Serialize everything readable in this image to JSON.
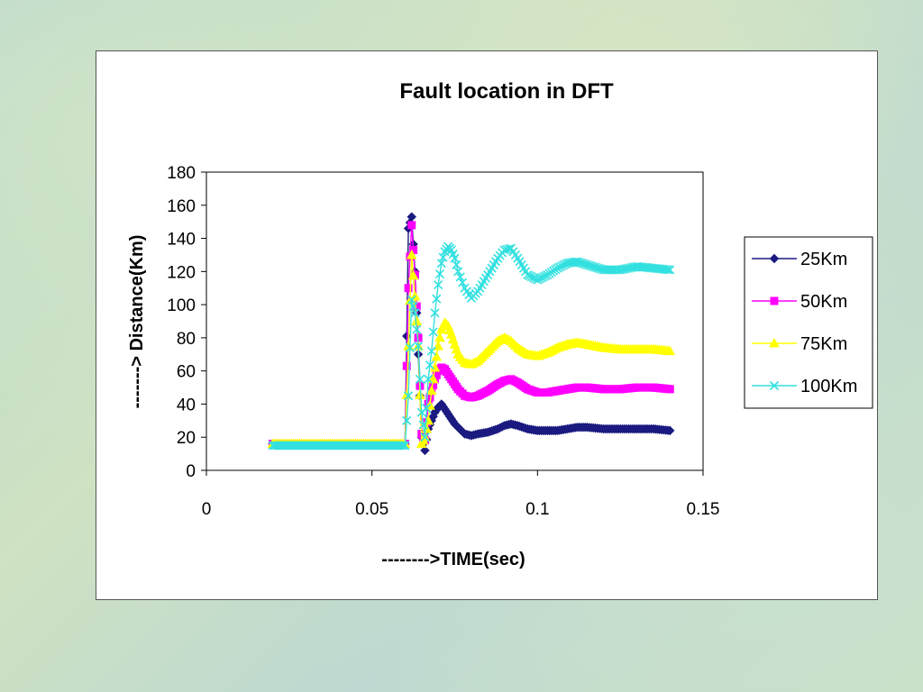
{
  "chart_data": {
    "type": "line",
    "title": "Fault location in DFT",
    "xlabel": "-------->TIME(sec)",
    "ylabel": "-------> Distance(Km)",
    "xlim": [
      0,
      0.15
    ],
    "ylim": [
      0,
      180
    ],
    "xticks": [
      "0",
      "0.05",
      "0.1",
      "0.15"
    ],
    "yticks": [
      "0",
      "20",
      "40",
      "60",
      "80",
      "100",
      "120",
      "140",
      "160",
      "180"
    ],
    "grid": false,
    "legend_position": "right",
    "series": [
      {
        "name": "25Km",
        "color": "#1a1a80",
        "marker": "diamond",
        "x": [
          0.02,
          0.025,
          0.03,
          0.035,
          0.04,
          0.045,
          0.05,
          0.055,
          0.06,
          0.061,
          0.062,
          0.063,
          0.064,
          0.065,
          0.066,
          0.067,
          0.068,
          0.069,
          0.07,
          0.071,
          0.072,
          0.073,
          0.074,
          0.075,
          0.076,
          0.078,
          0.08,
          0.082,
          0.085,
          0.088,
          0.09,
          0.092,
          0.094,
          0.097,
          0.1,
          0.103,
          0.106,
          0.109,
          0.112,
          0.115,
          0.12,
          0.125,
          0.13,
          0.135,
          0.14
        ],
        "y": [
          16,
          16,
          16,
          16,
          16,
          16,
          16,
          16,
          16,
          146,
          153,
          120,
          70,
          20,
          12,
          25,
          30,
          35,
          38,
          40,
          37,
          34,
          31,
          28,
          26,
          22,
          21,
          22,
          23,
          25,
          27,
          28,
          27,
          25,
          24,
          24,
          24,
          25,
          26,
          26,
          25,
          25,
          25,
          25,
          24
        ]
      },
      {
        "name": "50Km",
        "color": "#ff00ff",
        "marker": "square",
        "x": [
          0.02,
          0.025,
          0.03,
          0.035,
          0.04,
          0.045,
          0.05,
          0.055,
          0.06,
          0.061,
          0.062,
          0.063,
          0.064,
          0.065,
          0.066,
          0.067,
          0.068,
          0.069,
          0.07,
          0.071,
          0.072,
          0.073,
          0.074,
          0.075,
          0.076,
          0.078,
          0.08,
          0.082,
          0.085,
          0.088,
          0.09,
          0.092,
          0.094,
          0.097,
          0.1,
          0.103,
          0.106,
          0.109,
          0.112,
          0.115,
          0.12,
          0.125,
          0.13,
          0.135,
          0.14
        ],
        "y": [
          16,
          16,
          16,
          16,
          16,
          16,
          16,
          16,
          16,
          110,
          148,
          118,
          80,
          22,
          18,
          40,
          48,
          55,
          60,
          62,
          61,
          58,
          55,
          52,
          49,
          45,
          44,
          45,
          48,
          52,
          54,
          55,
          53,
          49,
          47,
          47,
          48,
          49,
          50,
          50,
          49,
          49,
          50,
          50,
          49
        ]
      },
      {
        "name": "75Km",
        "color": "#ffff00",
        "marker": "triangle",
        "x": [
          0.02,
          0.025,
          0.03,
          0.035,
          0.04,
          0.045,
          0.05,
          0.055,
          0.06,
          0.061,
          0.062,
          0.063,
          0.064,
          0.065,
          0.066,
          0.067,
          0.068,
          0.069,
          0.07,
          0.071,
          0.072,
          0.073,
          0.074,
          0.075,
          0.076,
          0.078,
          0.08,
          0.082,
          0.085,
          0.088,
          0.09,
          0.092,
          0.094,
          0.097,
          0.1,
          0.103,
          0.106,
          0.109,
          0.112,
          0.115,
          0.12,
          0.125,
          0.13,
          0.135,
          0.14
        ],
        "y": [
          16,
          16,
          16,
          16,
          16,
          16,
          16,
          16,
          16,
          75,
          130,
          105,
          75,
          16,
          20,
          30,
          48,
          62,
          75,
          85,
          89,
          87,
          82,
          76,
          70,
          65,
          64,
          66,
          72,
          78,
          80,
          78,
          74,
          70,
          69,
          71,
          74,
          76,
          77,
          76,
          74,
          73,
          73,
          73,
          72
        ]
      },
      {
        "name": "100Km",
        "color": "#33e0e0",
        "marker": "x",
        "x": [
          0.02,
          0.025,
          0.03,
          0.035,
          0.04,
          0.045,
          0.05,
          0.055,
          0.06,
          0.061,
          0.062,
          0.063,
          0.064,
          0.065,
          0.066,
          0.067,
          0.068,
          0.069,
          0.07,
          0.071,
          0.072,
          0.073,
          0.074,
          0.075,
          0.076,
          0.078,
          0.08,
          0.082,
          0.085,
          0.088,
          0.09,
          0.092,
          0.094,
          0.097,
          0.1,
          0.103,
          0.106,
          0.109,
          0.112,
          0.115,
          0.12,
          0.125,
          0.13,
          0.135,
          0.14
        ],
        "y": [
          15,
          15,
          15,
          15,
          15,
          15,
          15,
          15,
          15,
          45,
          103,
          95,
          75,
          35,
          20,
          55,
          72,
          95,
          112,
          125,
          132,
          135,
          133,
          128,
          120,
          110,
          104,
          108,
          118,
          128,
          133,
          134,
          128,
          118,
          115,
          118,
          122,
          125,
          126,
          124,
          121,
          121,
          123,
          122,
          121
        ]
      }
    ]
  }
}
